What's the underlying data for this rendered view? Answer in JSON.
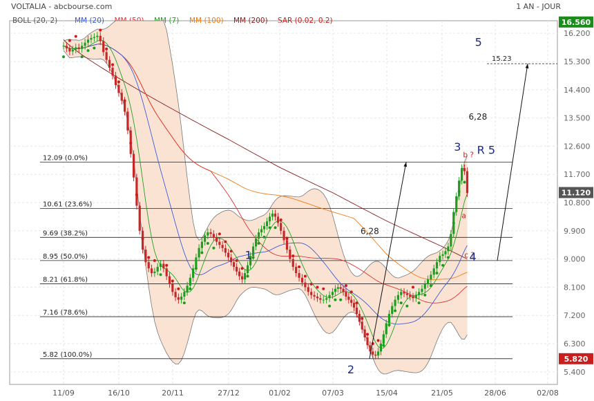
{
  "header": {
    "title": "VOLTALIA - abcbourse.com",
    "period": "1 AN - JOUR"
  },
  "indicators": [
    {
      "label": "BOLL (20, 2)",
      "color": "#555555"
    },
    {
      "label": "MM (20)",
      "color": "#3a5bd9"
    },
    {
      "label": "MM (50)",
      "color": "#e03030"
    },
    {
      "label": "MM (7)",
      "color": "#20a020"
    },
    {
      "label": "MM (100)",
      "color": "#f07a10"
    },
    {
      "label": "MM (200)",
      "color": "#8b2020"
    },
    {
      "label": "SAR (0.02, 0.2)",
      "color": "#d01818"
    }
  ],
  "badges": {
    "top": {
      "text": "16.560",
      "color": "#1a8c1a"
    },
    "current": {
      "text": "11.120",
      "color": "#555555"
    },
    "low": {
      "text": "5.820",
      "color": "#c81e1e"
    }
  },
  "chart_data": {
    "type": "candlestick",
    "ylim": [
      5.0,
      16.6
    ],
    "y_ticks": [
      "16.200",
      "15.300",
      "14.400",
      "13.500",
      "12.600",
      "11.700",
      "10.800",
      "9.900",
      "9.000",
      "8.100",
      "7.200",
      "6.300",
      "5.400"
    ],
    "x_ticks": [
      "11/09",
      "16/10",
      "20/11",
      "27/12",
      "01/02",
      "07/03",
      "15/04",
      "21/05",
      "28/06",
      "02/08"
    ],
    "fib_levels": [
      {
        "label": "12.09  (0.0%)",
        "value": 12.09
      },
      {
        "label": "10.61  (23.6%)",
        "value": 10.61
      },
      {
        "label": "9.69  (38.2%)",
        "value": 9.69
      },
      {
        "label": "8.95  (50.0%)",
        "value": 8.95
      },
      {
        "label": "8.21  (61.8%)",
        "value": 8.21
      },
      {
        "label": "7.16  (78.6%)",
        "value": 7.16
      },
      {
        "label": "5.82  (100.0%)",
        "value": 5.82
      }
    ],
    "target_level": {
      "label": "15.23",
      "value": 15.23
    },
    "waves": [
      {
        "label": "1",
        "x": "10/01",
        "y": 9.0
      },
      {
        "label": "2",
        "x": "20/03",
        "y": 5.35
      },
      {
        "label": "3",
        "x": "01/06",
        "y": 12.45
      },
      {
        "label": "4",
        "x": "12/06",
        "y": 8.95
      },
      {
        "label": "5",
        "x": "16/06",
        "y": 15.8
      }
    ],
    "annotations": [
      {
        "label": "b ?",
        "x": "05/06",
        "y": 12.25
      },
      {
        "label": "a",
        "x": "04/06",
        "y": 10.3
      },
      {
        "label": "c ?",
        "x": "06/06",
        "y": 9.05
      },
      {
        "label": "R 5",
        "x": "15/06",
        "y": 12.35
      },
      {
        "label": "6,28",
        "x": "27/03",
        "y": 9.8
      },
      {
        "label": "6,28",
        "x": "09/06",
        "y": 13.45
      }
    ],
    "close": [
      15.8,
      15.72,
      15.62,
      15.68,
      15.75,
      15.7,
      15.8,
      15.9,
      16.0,
      16.05,
      16.08,
      16.12,
      15.95,
      15.6,
      15.35,
      15.1,
      14.85,
      14.55,
      14.3,
      14.05,
      13.7,
      13.1,
      12.35,
      11.6,
      10.7,
      9.9,
      9.3,
      8.9,
      8.7,
      8.55,
      8.6,
      8.75,
      8.85,
      8.7,
      8.45,
      8.2,
      7.95,
      7.78,
      7.7,
      7.8,
      7.95,
      8.15,
      8.4,
      8.7,
      9.05,
      9.35,
      9.55,
      9.75,
      9.85,
      9.8,
      9.7,
      9.55,
      9.45,
      9.35,
      9.2,
      9.05,
      8.9,
      8.75,
      8.6,
      8.45,
      8.35,
      8.55,
      8.8,
      9.1,
      9.4,
      9.65,
      9.85,
      9.95,
      10.05,
      10.2,
      10.35,
      10.45,
      10.35,
      10.15,
      9.9,
      9.6,
      9.3,
      9.0,
      8.75,
      8.55,
      8.4,
      8.25,
      8.1,
      7.95,
      7.85,
      7.8,
      7.75,
      7.7,
      7.7,
      7.75,
      7.85,
      7.95,
      8.05,
      8.1,
      8.05,
      7.95,
      7.8,
      7.7,
      7.6,
      7.45,
      7.25,
      7.0,
      6.75,
      6.5,
      6.25,
      6.05,
      5.95,
      5.92,
      6.05,
      6.3,
      6.6,
      6.95,
      7.25,
      7.5,
      7.7,
      7.85,
      7.95,
      7.9,
      7.85,
      7.8,
      7.75,
      7.85,
      7.95,
      8.05,
      8.2,
      8.35,
      8.5,
      8.7,
      8.9,
      9.1,
      9.15,
      9.25,
      9.4,
      9.8,
      10.5,
      11.0,
      11.5,
      11.9,
      11.8,
      11.1
    ]
  }
}
